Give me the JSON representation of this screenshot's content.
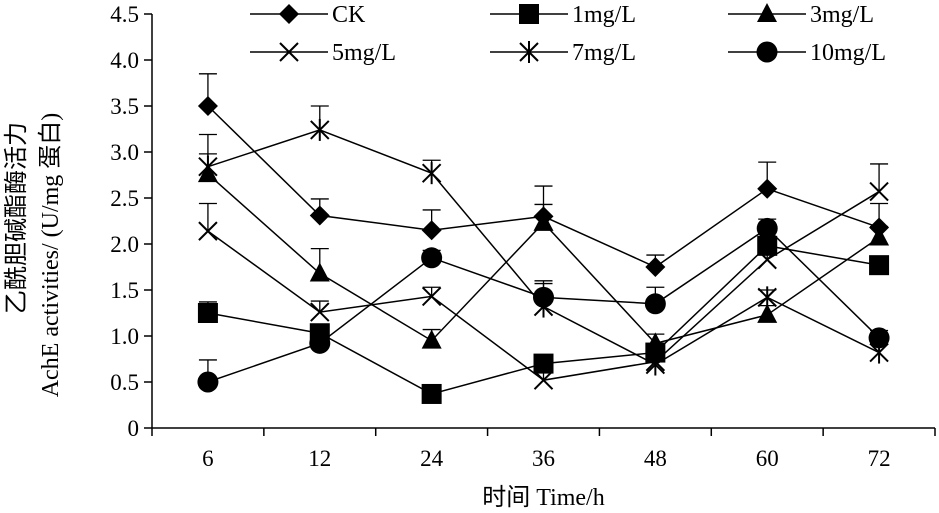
{
  "chart_data": {
    "type": "line",
    "categories": [
      "6",
      "12",
      "24",
      "36",
      "48",
      "60",
      "72"
    ],
    "xlabel": "时间 Time/h",
    "ylabel_line1": "乙酰胆碱酯酶活力",
    "ylabel_line2": "AchE activities/ (U/mg 蛋白)",
    "ylim": [
      0,
      4.5
    ],
    "yticks": [
      "0",
      "0.5",
      "1.0",
      "1.5",
      "2.0",
      "2.5",
      "3.0",
      "3.5",
      "4.0",
      "4.5"
    ],
    "legend_position": "top",
    "grid": false,
    "series": [
      {
        "name": "CK",
        "marker": "diamond",
        "values": [
          3.5,
          2.31,
          2.15,
          2.3,
          1.75,
          2.6,
          2.18
        ],
        "errors": [
          0.35,
          0.18,
          0.22,
          0.33,
          0.13,
          0.29,
          0.26
        ]
      },
      {
        "name": "1mg/L",
        "marker": "square",
        "values": [
          1.25,
          1.03,
          0.37,
          0.7,
          0.82,
          1.98,
          1.77
        ],
        "errors": [
          0.12,
          0.05,
          0.05,
          0.05,
          0.05,
          0.08,
          0.08
        ]
      },
      {
        "name": "3mg/L",
        "marker": "triangle",
        "values": [
          2.76,
          1.68,
          0.95,
          2.23,
          0.92,
          1.23,
          2.07
        ],
        "errors": [
          0.22,
          0.27,
          0.12,
          0.2,
          0.1,
          0.1,
          0.12
        ]
      },
      {
        "name": "5mg/L",
        "marker": "x",
        "values": [
          2.14,
          1.26,
          1.43,
          0.52,
          0.72,
          1.83,
          2.57
        ],
        "errors": [
          0.3,
          0.12,
          0.1,
          0.08,
          0.08,
          0.1,
          0.3
        ]
      },
      {
        "name": "7mg/L",
        "marker": "star",
        "values": [
          2.84,
          3.24,
          2.77,
          1.32,
          0.69,
          1.42,
          0.82
        ],
        "errors": [
          0.35,
          0.26,
          0.14,
          0.25,
          0.07,
          0.08,
          0.1
        ]
      },
      {
        "name": "10mg/L",
        "marker": "circle",
        "values": [
          0.5,
          0.92,
          1.85,
          1.42,
          1.35,
          2.17,
          0.98
        ],
        "errors": [
          0.24,
          0.06,
          0.08,
          0.18,
          0.18,
          0.1,
          0.08
        ]
      }
    ]
  }
}
